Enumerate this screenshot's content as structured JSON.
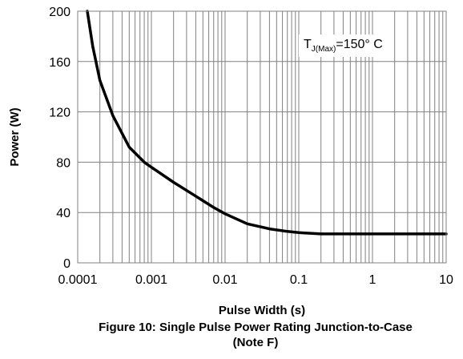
{
  "chart_data": {
    "type": "line",
    "title": "Figure 10: Single Pulse Power Rating Junction-to-Case",
    "subtitle": "(Note F)",
    "xlabel": "Pulse Width (s)",
    "ylabel": "Power (W)",
    "xscale": "log",
    "xlim": [
      0.0001,
      10
    ],
    "ylim": [
      0,
      200
    ],
    "x_ticks": [
      "0.0001",
      "0.001",
      "0.01",
      "0.1",
      "1",
      "10"
    ],
    "y_ticks": [
      "0",
      "40",
      "80",
      "120",
      "160",
      "200"
    ],
    "grid": true,
    "annotation": {
      "main": "T",
      "sub": "J(Max)",
      "rest": "=150° C"
    },
    "series": [
      {
        "color": "#000000",
        "x": [
          0.000135,
          0.00016,
          0.0002,
          0.0003,
          0.0005,
          0.0008,
          0.001,
          0.002,
          0.004,
          0.007,
          0.01,
          0.02,
          0.04,
          0.07,
          0.1,
          0.2,
          0.5,
          1,
          2,
          5,
          10
        ],
        "y": [
          200,
          172,
          145,
          117,
          92,
          80,
          76,
          64,
          53,
          44,
          39,
          31,
          27,
          25,
          24,
          23,
          23,
          23,
          23,
          23,
          23
        ]
      }
    ]
  }
}
